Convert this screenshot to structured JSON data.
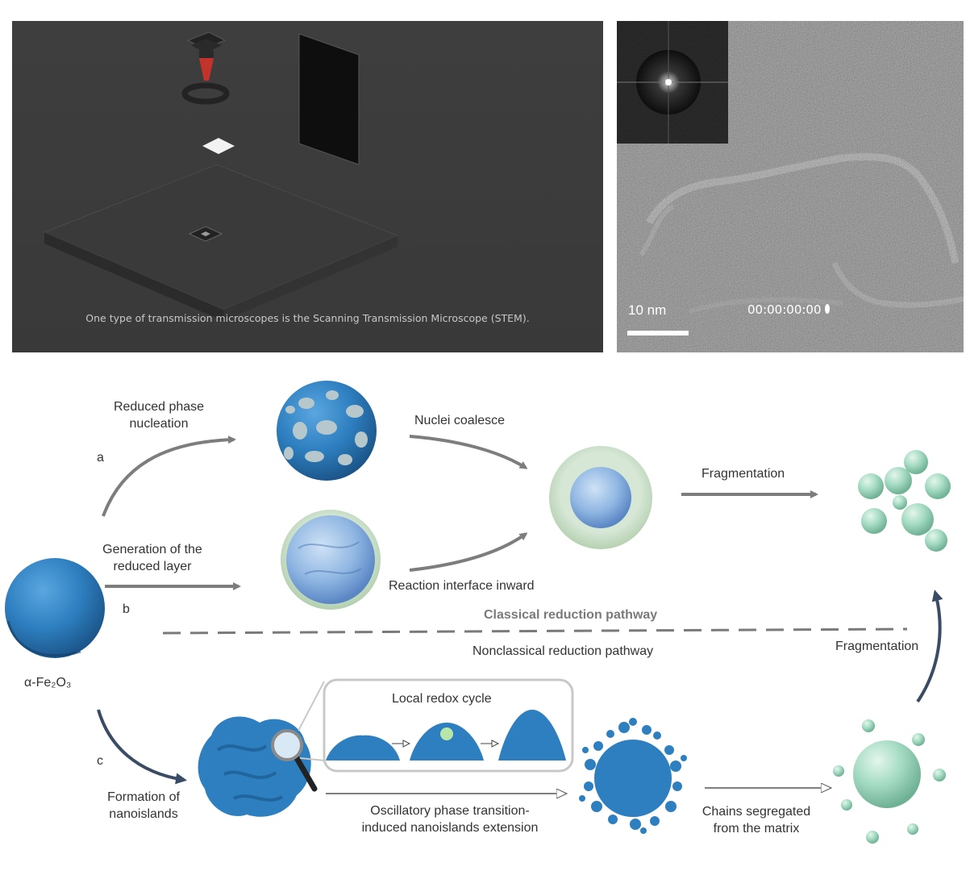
{
  "stem_panel": {
    "caption": "One type of transmission microscopes is the Scanning Transmission Microscope (STEM)."
  },
  "tem_panel": {
    "scale_label": "10 nm",
    "timestamp": "00:00:00:00"
  },
  "diagram": {
    "start_label": "α-Fe₂O₃",
    "path_a": {
      "letter": "a",
      "step1": [
        "Reduced phase",
        "nucleation"
      ],
      "step2": "Nuclei coalesce"
    },
    "path_b": {
      "letter": "b",
      "step1": [
        "Generation of the",
        "reduced layer"
      ],
      "step2": "Reaction interface inward"
    },
    "fragmentation_top": "Fragmentation",
    "classical_label": "Classical reduction pathway",
    "nonclassical_label": "Nonclassical reduction pathway",
    "path_c": {
      "letter": "c",
      "step1": [
        "Formation of",
        "nanoislands"
      ],
      "inset_title": "Local redox cycle",
      "step2": [
        "Oscillatory phase transition-",
        "induced nanoislands extension"
      ],
      "step3": [
        "Chains segregated",
        "from the matrix"
      ],
      "fragmentation": "Fragmentation"
    },
    "colors": {
      "hematite_blue": "#2e7fc0",
      "reduced_green": "#a6dcc4",
      "arrow_grey": "#7d7d7d",
      "arrow_navy": "#3a4b66"
    }
  }
}
